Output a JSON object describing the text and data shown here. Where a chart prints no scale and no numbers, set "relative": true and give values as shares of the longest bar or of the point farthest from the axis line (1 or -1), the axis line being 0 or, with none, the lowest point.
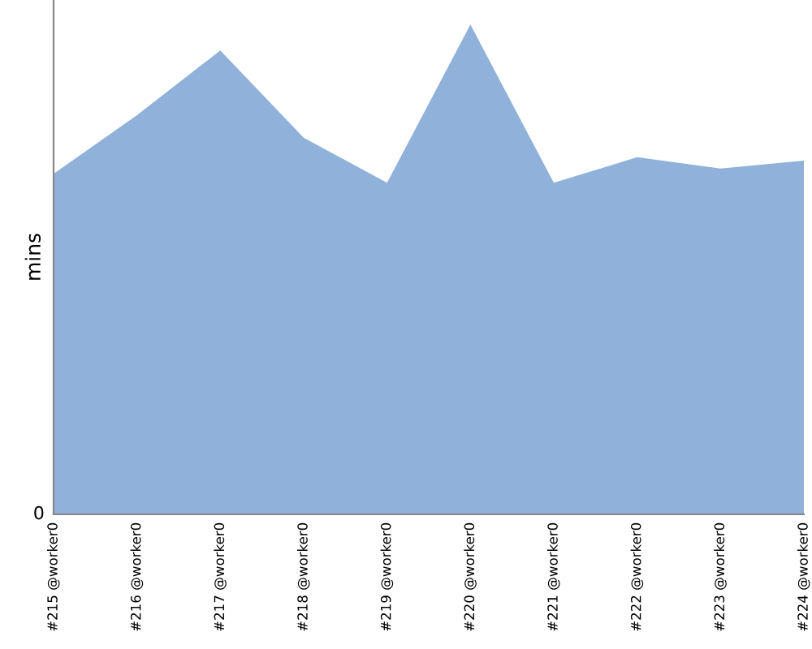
{
  "chart_data": {
    "type": "area",
    "ylabel": "mins",
    "relative": true,
    "categories": [
      "#215 @worker0",
      "#216 @worker0",
      "#217 @worker0",
      "#218 @worker0",
      "#219 @worker0",
      "#220 @worker0",
      "#221 @worker0",
      "#222 @worker0",
      "#223 @worker0",
      "#224 @worker0"
    ],
    "series": [
      {
        "color": "#8fb1da",
        "values": [
          0.695,
          0.815,
          0.947,
          0.769,
          0.677,
          1,
          0.677,
          0.729,
          0.706,
          0.722
        ]
      }
    ],
    "annotations": [
      "0"
    ],
    "grid": false,
    "legend": false
  }
}
